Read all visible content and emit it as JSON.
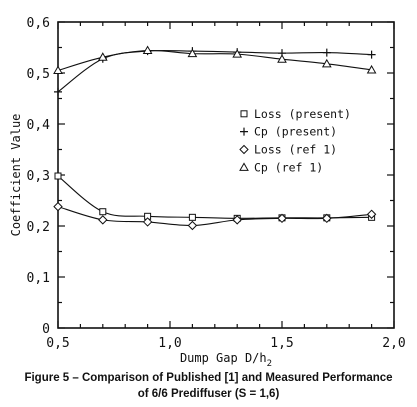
{
  "caption": {
    "line1": "Figure 5 – Comparison of Published [1] and Measured Performance",
    "line2": "of 6/6 Prediffuser (S = 1,6)"
  },
  "chart_data": {
    "type": "scatter",
    "xlabel": "Dump Gap D/h",
    "xlabel_subscript": "2",
    "ylabel": "Coefficient Value",
    "xlim": [
      0.5,
      2.0
    ],
    "ylim": [
      0.0,
      0.6
    ],
    "xticks": [
      "0,5",
      "1,0",
      "1,5",
      "2,0"
    ],
    "yticks": [
      "0",
      "0,1",
      "0,2",
      "0,3",
      "0,4",
      "0,5",
      "0,6"
    ],
    "grid": false,
    "legend_position": "right-middle",
    "series": [
      {
        "name": "Loss (present)",
        "marker": "square",
        "x": [
          0.5,
          0.7,
          0.9,
          1.1,
          1.3,
          1.5,
          1.7,
          1.9
        ],
        "y": [
          0.298,
          0.228,
          0.219,
          0.217,
          0.215,
          0.216,
          0.216,
          0.217
        ]
      },
      {
        "name": "Cp (present)",
        "marker": "plus",
        "x": [
          0.5,
          0.7,
          0.9,
          1.1,
          1.3,
          1.5,
          1.7,
          1.9
        ],
        "y": [
          0.463,
          0.528,
          0.543,
          0.543,
          0.541,
          0.539,
          0.54,
          0.536
        ]
      },
      {
        "name": "Loss (ref 1)",
        "marker": "diamond",
        "x": [
          0.5,
          0.7,
          0.9,
          1.1,
          1.3,
          1.5,
          1.7,
          1.9
        ],
        "y": [
          0.238,
          0.212,
          0.208,
          0.201,
          0.212,
          0.215,
          0.215,
          0.223
        ]
      },
      {
        "name": "Cp (ref 1)",
        "marker": "triangle",
        "x": [
          0.5,
          0.7,
          0.9,
          1.1,
          1.3,
          1.5,
          1.7,
          1.9
        ],
        "y": [
          0.505,
          0.531,
          0.544,
          0.538,
          0.537,
          0.527,
          0.518,
          0.506
        ]
      }
    ],
    "legend_labels": [
      "Loss (present)",
      "Cp (present)",
      "Loss (ref 1)",
      "Cp (ref 1)"
    ]
  }
}
